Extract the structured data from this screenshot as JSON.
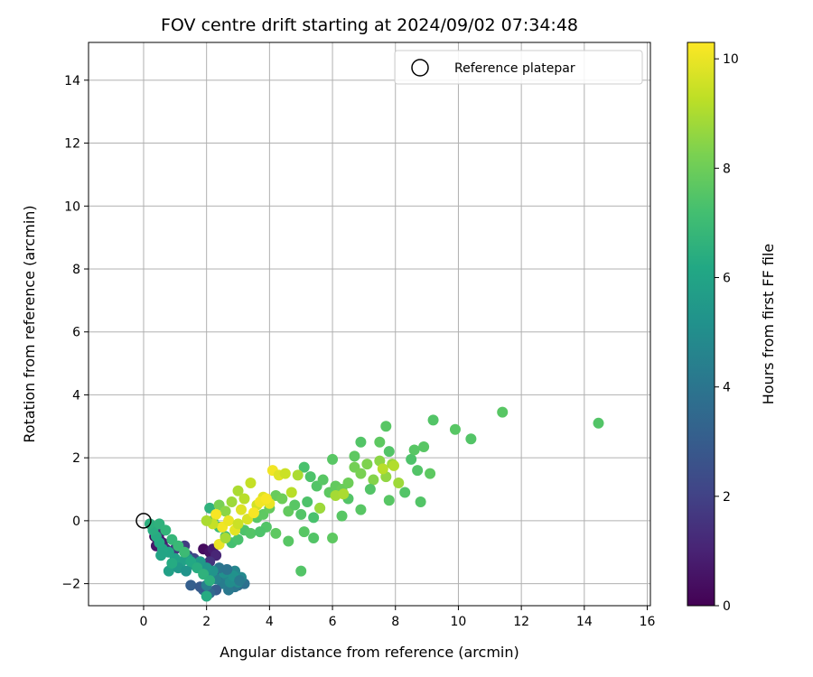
{
  "chart_data": {
    "type": "scatter",
    "title": "FOV centre drift starting at 2024/09/02 07:34:48",
    "xlabel": "Angular distance from reference (arcmin)",
    "ylabel": "Rotation from reference (arcmin)",
    "xlim": [
      -1.75,
      16.1
    ],
    "ylim": [
      -2.7,
      15.2
    ],
    "xticks": [
      0,
      2,
      4,
      6,
      8,
      10,
      12,
      14,
      16
    ],
    "yticks": [
      -2,
      0,
      2,
      4,
      6,
      8,
      10,
      12,
      14
    ],
    "xtick_labels": [
      "0",
      "2",
      "4",
      "6",
      "8",
      "10",
      "12",
      "14",
      "16"
    ],
    "ytick_labels": [
      "−2",
      "0",
      "2",
      "4",
      "6",
      "8",
      "10",
      "12",
      "14"
    ],
    "grid": true,
    "colormap": "viridis",
    "colorbar": {
      "label": "Hours from first FF file",
      "range": [
        0,
        10.3
      ],
      "ticks": [
        0,
        2,
        4,
        6,
        8,
        10
      ],
      "tick_labels": [
        "0",
        "2",
        "4",
        "6",
        "8",
        "10"
      ]
    },
    "legend": {
      "placement": "top-right",
      "entries": [
        {
          "label": "Reference platepar",
          "marker": "open-circle"
        }
      ]
    },
    "reference_point": {
      "x": 0,
      "y": 0
    },
    "series": [
      {
        "points": [
          [
            0.35,
            -0.5,
            0.2
          ],
          [
            0.5,
            -0.6,
            0.4
          ],
          [
            0.4,
            -0.8,
            0.6
          ],
          [
            0.6,
            -0.7,
            0.8
          ],
          [
            0.5,
            -0.4,
            1.0
          ],
          [
            0.7,
            -0.9,
            1.2
          ],
          [
            0.9,
            -1.0,
            1.4
          ],
          [
            1.0,
            -0.9,
            1.6
          ],
          [
            1.3,
            -0.8,
            1.8
          ],
          [
            1.4,
            -1.1,
            2.0
          ],
          [
            1.6,
            -1.2,
            2.2
          ],
          [
            1.9,
            -0.9,
            0.3
          ],
          [
            2.1,
            -1.0,
            0.5
          ],
          [
            2.2,
            -0.9,
            0.8
          ],
          [
            2.3,
            -1.1,
            1.1
          ],
          [
            2.1,
            -1.3,
            1.5
          ],
          [
            1.8,
            -1.4,
            2.4
          ],
          [
            2.0,
            -1.6,
            2.6
          ],
          [
            2.2,
            -1.7,
            2.8
          ],
          [
            2.4,
            -1.8,
            3.0
          ],
          [
            2.6,
            -1.9,
            3.2
          ],
          [
            2.8,
            -2.0,
            3.4
          ],
          [
            3.0,
            -2.05,
            3.6
          ],
          [
            3.2,
            -2.0,
            3.8
          ],
          [
            2.9,
            -2.1,
            4.0
          ],
          [
            2.7,
            -2.2,
            4.1
          ],
          [
            2.5,
            -2.0,
            4.3
          ],
          [
            2.3,
            -2.2,
            3.0
          ],
          [
            2.1,
            -2.3,
            3.5
          ],
          [
            1.9,
            -2.2,
            3.3
          ],
          [
            1.5,
            -2.05,
            3.1
          ],
          [
            1.8,
            -2.1,
            2.9
          ],
          [
            2.0,
            -2.05,
            4.4
          ],
          [
            2.3,
            -1.85,
            4.5
          ],
          [
            2.6,
            -1.7,
            4.6
          ],
          [
            2.9,
            -1.6,
            4.7
          ],
          [
            3.1,
            -1.8,
            4.8
          ],
          [
            3.0,
            -1.95,
            4.9
          ],
          [
            2.75,
            -1.95,
            5.0
          ],
          [
            2.55,
            -1.65,
            5.1
          ],
          [
            2.85,
            -1.75,
            5.2
          ],
          [
            3.05,
            -1.9,
            4.2
          ],
          [
            2.4,
            -1.5,
            4.0
          ],
          [
            2.65,
            -1.55,
            3.9
          ],
          [
            2.2,
            -1.6,
            5.3
          ],
          [
            2.0,
            -1.5,
            5.4
          ],
          [
            1.8,
            -1.3,
            5.5
          ],
          [
            1.6,
            -1.4,
            5.6
          ],
          [
            1.4,
            -1.2,
            5.7
          ],
          [
            1.2,
            -1.3,
            5.8
          ],
          [
            1.0,
            -1.2,
            5.9
          ],
          [
            0.8,
            -1.0,
            6.0
          ],
          [
            0.6,
            -0.9,
            6.1
          ],
          [
            0.5,
            -0.7,
            6.2
          ],
          [
            0.4,
            -0.5,
            6.3
          ],
          [
            0.3,
            -0.3,
            6.4
          ],
          [
            0.2,
            -0.1,
            6.5
          ],
          [
            0.5,
            -0.1,
            6.6
          ],
          [
            0.7,
            -0.3,
            6.7
          ],
          [
            0.9,
            -0.6,
            6.8
          ],
          [
            1.1,
            -0.8,
            6.9
          ],
          [
            1.3,
            -1.0,
            7.0
          ],
          [
            1.5,
            -1.3,
            6.2
          ],
          [
            1.7,
            -1.5,
            6.4
          ],
          [
            1.9,
            -1.7,
            6.6
          ],
          [
            2.1,
            -1.9,
            6.5
          ],
          [
            2.0,
            -2.4,
            6.3
          ],
          [
            0.8,
            -1.6,
            5.8
          ],
          [
            1.1,
            -1.5,
            5.5
          ],
          [
            1.35,
            -1.6,
            5.3
          ],
          [
            0.55,
            -1.1,
            6.0
          ],
          [
            0.9,
            -1.35,
            6.3
          ],
          [
            2.1,
            0.4,
            6.6
          ],
          [
            2.2,
            0.0,
            6.8
          ],
          [
            2.4,
            -0.2,
            7.0
          ],
          [
            2.6,
            -0.5,
            7.1
          ],
          [
            2.8,
            -0.7,
            7.2
          ],
          [
            3.0,
            -0.6,
            7.3
          ],
          [
            3.2,
            -0.3,
            7.4
          ],
          [
            3.4,
            -0.4,
            7.5
          ],
          [
            3.6,
            0.1,
            7.6
          ],
          [
            3.8,
            0.2,
            7.7
          ],
          [
            4.0,
            0.4,
            7.8
          ],
          [
            4.2,
            0.8,
            7.9
          ],
          [
            4.4,
            0.7,
            8.0
          ],
          [
            4.6,
            0.3,
            7.8
          ],
          [
            4.8,
            0.5,
            7.6
          ],
          [
            5.0,
            0.2,
            7.5
          ],
          [
            5.2,
            0.6,
            7.4
          ],
          [
            5.4,
            0.1,
            7.3
          ],
          [
            5.6,
            0.4,
            7.2
          ],
          [
            5.1,
            1.7,
            7.3
          ],
          [
            5.3,
            1.4,
            7.4
          ],
          [
            5.5,
            1.1,
            7.5
          ],
          [
            5.7,
            1.3,
            7.6
          ],
          [
            5.9,
            0.9,
            7.7
          ],
          [
            6.1,
            1.1,
            7.8
          ],
          [
            6.3,
            1.0,
            7.9
          ],
          [
            6.5,
            1.2,
            8.0
          ],
          [
            6.7,
            1.7,
            8.1
          ],
          [
            6.9,
            1.5,
            8.2
          ],
          [
            7.1,
            1.8,
            8.3
          ],
          [
            7.3,
            1.3,
            8.4
          ],
          [
            7.5,
            1.9,
            8.5
          ],
          [
            7.7,
            1.4,
            8.6
          ],
          [
            7.9,
            1.8,
            8.7
          ],
          [
            8.1,
            1.2,
            8.8
          ],
          [
            8.3,
            0.9,
            7.5
          ],
          [
            8.5,
            1.95,
            7.4
          ],
          [
            8.7,
            1.6,
            7.5
          ],
          [
            8.9,
            2.35,
            7.6
          ],
          [
            9.1,
            1.5,
            7.7
          ],
          [
            9.2,
            3.2,
            7.5
          ],
          [
            9.9,
            2.9,
            7.6
          ],
          [
            10.4,
            2.6,
            7.5
          ],
          [
            11.4,
            3.45,
            7.6
          ],
          [
            14.45,
            3.1,
            7.5
          ],
          [
            7.7,
            3.0,
            7.6
          ],
          [
            7.5,
            2.5,
            7.7
          ],
          [
            6.9,
            2.5,
            7.5
          ],
          [
            6.0,
            1.95,
            7.6
          ],
          [
            7.8,
            2.2,
            7.5
          ],
          [
            6.7,
            2.05,
            7.7
          ],
          [
            8.6,
            2.25,
            7.6
          ],
          [
            8.8,
            0.6,
            7.5
          ],
          [
            7.8,
            0.65,
            7.6
          ],
          [
            7.2,
            1.0,
            7.5
          ],
          [
            6.9,
            0.35,
            7.6
          ],
          [
            6.5,
            0.7,
            7.5
          ],
          [
            6.3,
            0.15,
            7.6
          ],
          [
            6.0,
            -0.55,
            7.7
          ],
          [
            5.4,
            -0.55,
            7.5
          ],
          [
            5.1,
            -0.35,
            7.6
          ],
          [
            5.0,
            -1.6,
            7.5
          ],
          [
            4.6,
            -0.65,
            7.6
          ],
          [
            4.2,
            -0.4,
            7.7
          ],
          [
            3.9,
            -0.2,
            7.5
          ],
          [
            3.7,
            -0.35,
            7.4
          ],
          [
            2.4,
            0.5,
            8.2
          ],
          [
            2.6,
            0.3,
            8.5
          ],
          [
            2.8,
            0.6,
            8.8
          ],
          [
            3.0,
            0.95,
            9.0
          ],
          [
            3.2,
            0.7,
            9.2
          ],
          [
            3.4,
            1.2,
            9.4
          ],
          [
            3.6,
            0.5,
            9.6
          ],
          [
            3.8,
            0.75,
            9.8
          ],
          [
            4.0,
            0.55,
            10.0
          ],
          [
            4.1,
            1.6,
            10.1
          ],
          [
            4.3,
            1.45,
            9.8
          ],
          [
            4.5,
            1.5,
            9.5
          ],
          [
            4.7,
            0.9,
            9.2
          ],
          [
            4.9,
            1.45,
            9.0
          ],
          [
            2.3,
            0.2,
            10.2
          ],
          [
            2.5,
            -0.2,
            10.1
          ],
          [
            2.7,
            0.0,
            10.0
          ],
          [
            2.9,
            -0.3,
            9.9
          ],
          [
            3.1,
            0.35,
            9.8
          ],
          [
            3.3,
            0.05,
            9.7
          ],
          [
            3.5,
            0.25,
            10.2
          ],
          [
            3.7,
            0.6,
            10.1
          ],
          [
            3.9,
            0.7,
            10.2
          ],
          [
            2.4,
            -0.75,
            10.0
          ],
          [
            2.2,
            -0.1,
            9.4
          ],
          [
            2.0,
            0.0,
            9.0
          ],
          [
            2.6,
            -0.55,
            8.9
          ],
          [
            3.0,
            -0.1,
            9.5
          ],
          [
            6.1,
            0.8,
            8.9
          ],
          [
            6.35,
            0.85,
            9.0
          ],
          [
            5.6,
            0.4,
            8.8
          ],
          [
            7.6,
            1.65,
            9.2
          ],
          [
            7.95,
            1.75,
            9.1
          ]
        ]
      }
    ]
  }
}
